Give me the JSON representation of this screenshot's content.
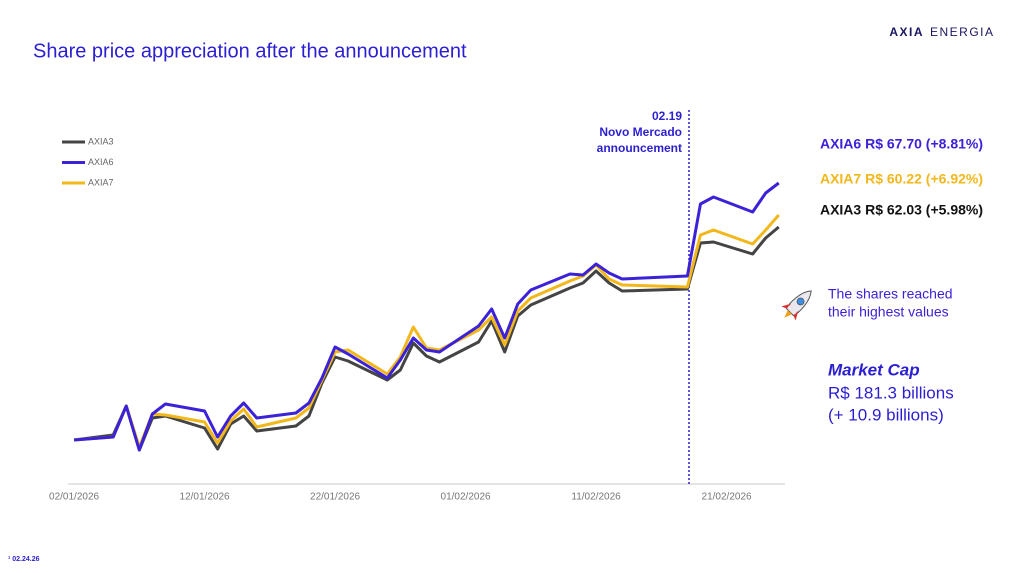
{
  "brand": {
    "bold": "AXIA",
    "light": "ENERGIA"
  },
  "footer": "¹ 02.24.26",
  "chart_data": {
    "type": "line",
    "title": "Share price appreciation after the announcement",
    "x": [
      "2026-01-02",
      "2026-01-05",
      "2026-01-06",
      "2026-01-07",
      "2026-01-08",
      "2026-01-09",
      "2026-01-12",
      "2026-01-13",
      "2026-01-14",
      "2026-01-15",
      "2026-01-16",
      "2026-01-19",
      "2026-01-20",
      "2026-01-21",
      "2026-01-22",
      "2026-01-23",
      "2026-01-26",
      "2026-01-27",
      "2026-01-28",
      "2026-01-29",
      "2026-01-30",
      "2026-02-02",
      "2026-02-03",
      "2026-02-04",
      "2026-02-05",
      "2026-02-06",
      "2026-02-09",
      "2026-02-10",
      "2026-02-11",
      "2026-02-12",
      "2026-02-13",
      "2026-02-18",
      "2026-02-19",
      "2026-02-20",
      "2026-02-23",
      "2026-02-24",
      "2026-02-25"
    ],
    "series": [
      {
        "name": "AXIA3",
        "color": "#444444",
        "values": [
          100,
          100.5,
          103.4,
          99,
          102.2,
          102.4,
          101.2,
          99.1,
          101.6,
          102.4,
          100.9,
          101.4,
          102.4,
          105.7,
          108.3,
          107.9,
          106,
          107,
          109.7,
          108.4,
          107.8,
          109.8,
          111.9,
          108.8,
          112.4,
          113.5,
          115.2,
          115.7,
          116.9,
          115.7,
          114.9,
          115.1,
          119.7,
          119.8,
          118.6,
          120.2,
          121.3
        ]
      },
      {
        "name": "AXIA6",
        "color": "#3b22d8",
        "values": [
          100,
          100.3,
          103.4,
          99,
          102.6,
          103.6,
          102.9,
          100.3,
          102.4,
          103.7,
          102.2,
          102.7,
          103.7,
          106.2,
          109.3,
          108.6,
          106.2,
          108,
          110.2,
          109,
          108.8,
          111.4,
          113.1,
          110.2,
          113.6,
          115,
          116.6,
          116.5,
          117.6,
          116.7,
          116.1,
          116.4,
          123.6,
          124.3,
          122.8,
          124.7,
          125.7
        ]
      },
      {
        "name": "AXIA7",
        "color": "#f2b81b",
        "values": [
          100,
          100.3,
          103.4,
          99.3,
          102.6,
          102.5,
          101.8,
          99.7,
          101.9,
          103.1,
          101.3,
          102.2,
          103.2,
          106,
          108.8,
          109,
          106.6,
          108.3,
          111.3,
          109.2,
          109,
          111,
          112.3,
          109.5,
          112.9,
          114.2,
          115.9,
          116.4,
          117.5,
          116.1,
          115.5,
          115.3,
          120.5,
          121,
          119.6,
          121,
          122.5
        ]
      }
    ],
    "xlim": [
      "2026-01-01",
      "2026-02-26"
    ],
    "xticks": [
      {
        "value": "2026-01-02",
        "label": "02/01/2026"
      },
      {
        "value": "2026-01-12",
        "label": "12/01/2026"
      },
      {
        "value": "2026-01-22",
        "label": "22/01/2026"
      },
      {
        "value": "2026-02-01",
        "label": "01/02/2026"
      },
      {
        "value": "2026-02-11",
        "label": "11/02/2026"
      },
      {
        "value": "2026-02-21",
        "label": "21/02/2026"
      }
    ],
    "ylim": [
      95,
      130
    ],
    "annotation": [
      "02.19",
      "Novo Mercado",
      "announcement"
    ],
    "end_labels": [
      {
        "text": "AXIA6 R$ 67.70 (+8.81%)",
        "color": "#3b22d8"
      },
      {
        "text": "AXIA7 R$ 60.22 (+6.92%)",
        "color": "#f2b81b"
      },
      {
        "text": "AXIA3 R$ 62.03 (+5.98%)",
        "color": "#111111"
      }
    ],
    "note": [
      "The shares reached",
      "their highest values"
    ],
    "market_cap": {
      "title": "Market Cap",
      "lines": [
        "R$ 181.3 billions",
        "(+ 10.9 billions)"
      ]
    }
  }
}
